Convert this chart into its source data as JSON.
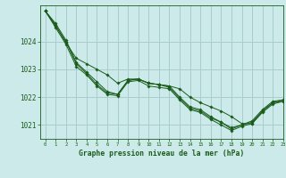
{
  "title": "Graphe pression niveau de la mer (hPa)",
  "bg_color": "#cceaea",
  "grid_color": "#aacccc",
  "line_color": "#1a5c1a",
  "xlim": [
    -0.5,
    23
  ],
  "ylim": [
    1020.5,
    1025.3
  ],
  "yticks": [
    1021,
    1022,
    1023,
    1024
  ],
  "xticks": [
    0,
    1,
    2,
    3,
    4,
    5,
    6,
    7,
    8,
    9,
    10,
    11,
    12,
    13,
    14,
    15,
    16,
    17,
    18,
    19,
    20,
    21,
    22,
    23
  ],
  "series": [
    [
      1025.1,
      1024.65,
      1024.05,
      1023.25,
      1022.9,
      1022.55,
      1022.2,
      1022.1,
      1022.6,
      1022.65,
      1022.5,
      1022.45,
      1022.4,
      1022.0,
      1021.65,
      1021.55,
      1021.3,
      1021.1,
      1020.85,
      1021.0,
      1021.15,
      1021.55,
      1021.85,
      1021.9
    ],
    [
      1025.1,
      1024.6,
      1023.95,
      1023.4,
      1023.2,
      1023.0,
      1022.8,
      1022.5,
      1022.65,
      1022.65,
      1022.5,
      1022.45,
      1022.4,
      1022.3,
      1022.0,
      1021.8,
      1021.65,
      1021.5,
      1021.3,
      1021.05,
      1021.05,
      1021.5,
      1021.8,
      1021.9
    ],
    [
      1025.1,
      1024.55,
      1024.0,
      1023.2,
      1022.85,
      1022.45,
      1022.15,
      1022.1,
      1022.6,
      1022.65,
      1022.5,
      1022.45,
      1022.35,
      1021.95,
      1021.6,
      1021.5,
      1021.25,
      1021.1,
      1020.9,
      1021.0,
      1021.1,
      1021.5,
      1021.8,
      1021.85
    ],
    [
      1025.1,
      1024.5,
      1023.9,
      1023.1,
      1022.8,
      1022.4,
      1022.1,
      1022.05,
      1022.55,
      1022.6,
      1022.4,
      1022.35,
      1022.3,
      1021.9,
      1021.55,
      1021.45,
      1021.2,
      1021.0,
      1020.8,
      1020.95,
      1021.05,
      1021.45,
      1021.75,
      1021.85
    ]
  ]
}
